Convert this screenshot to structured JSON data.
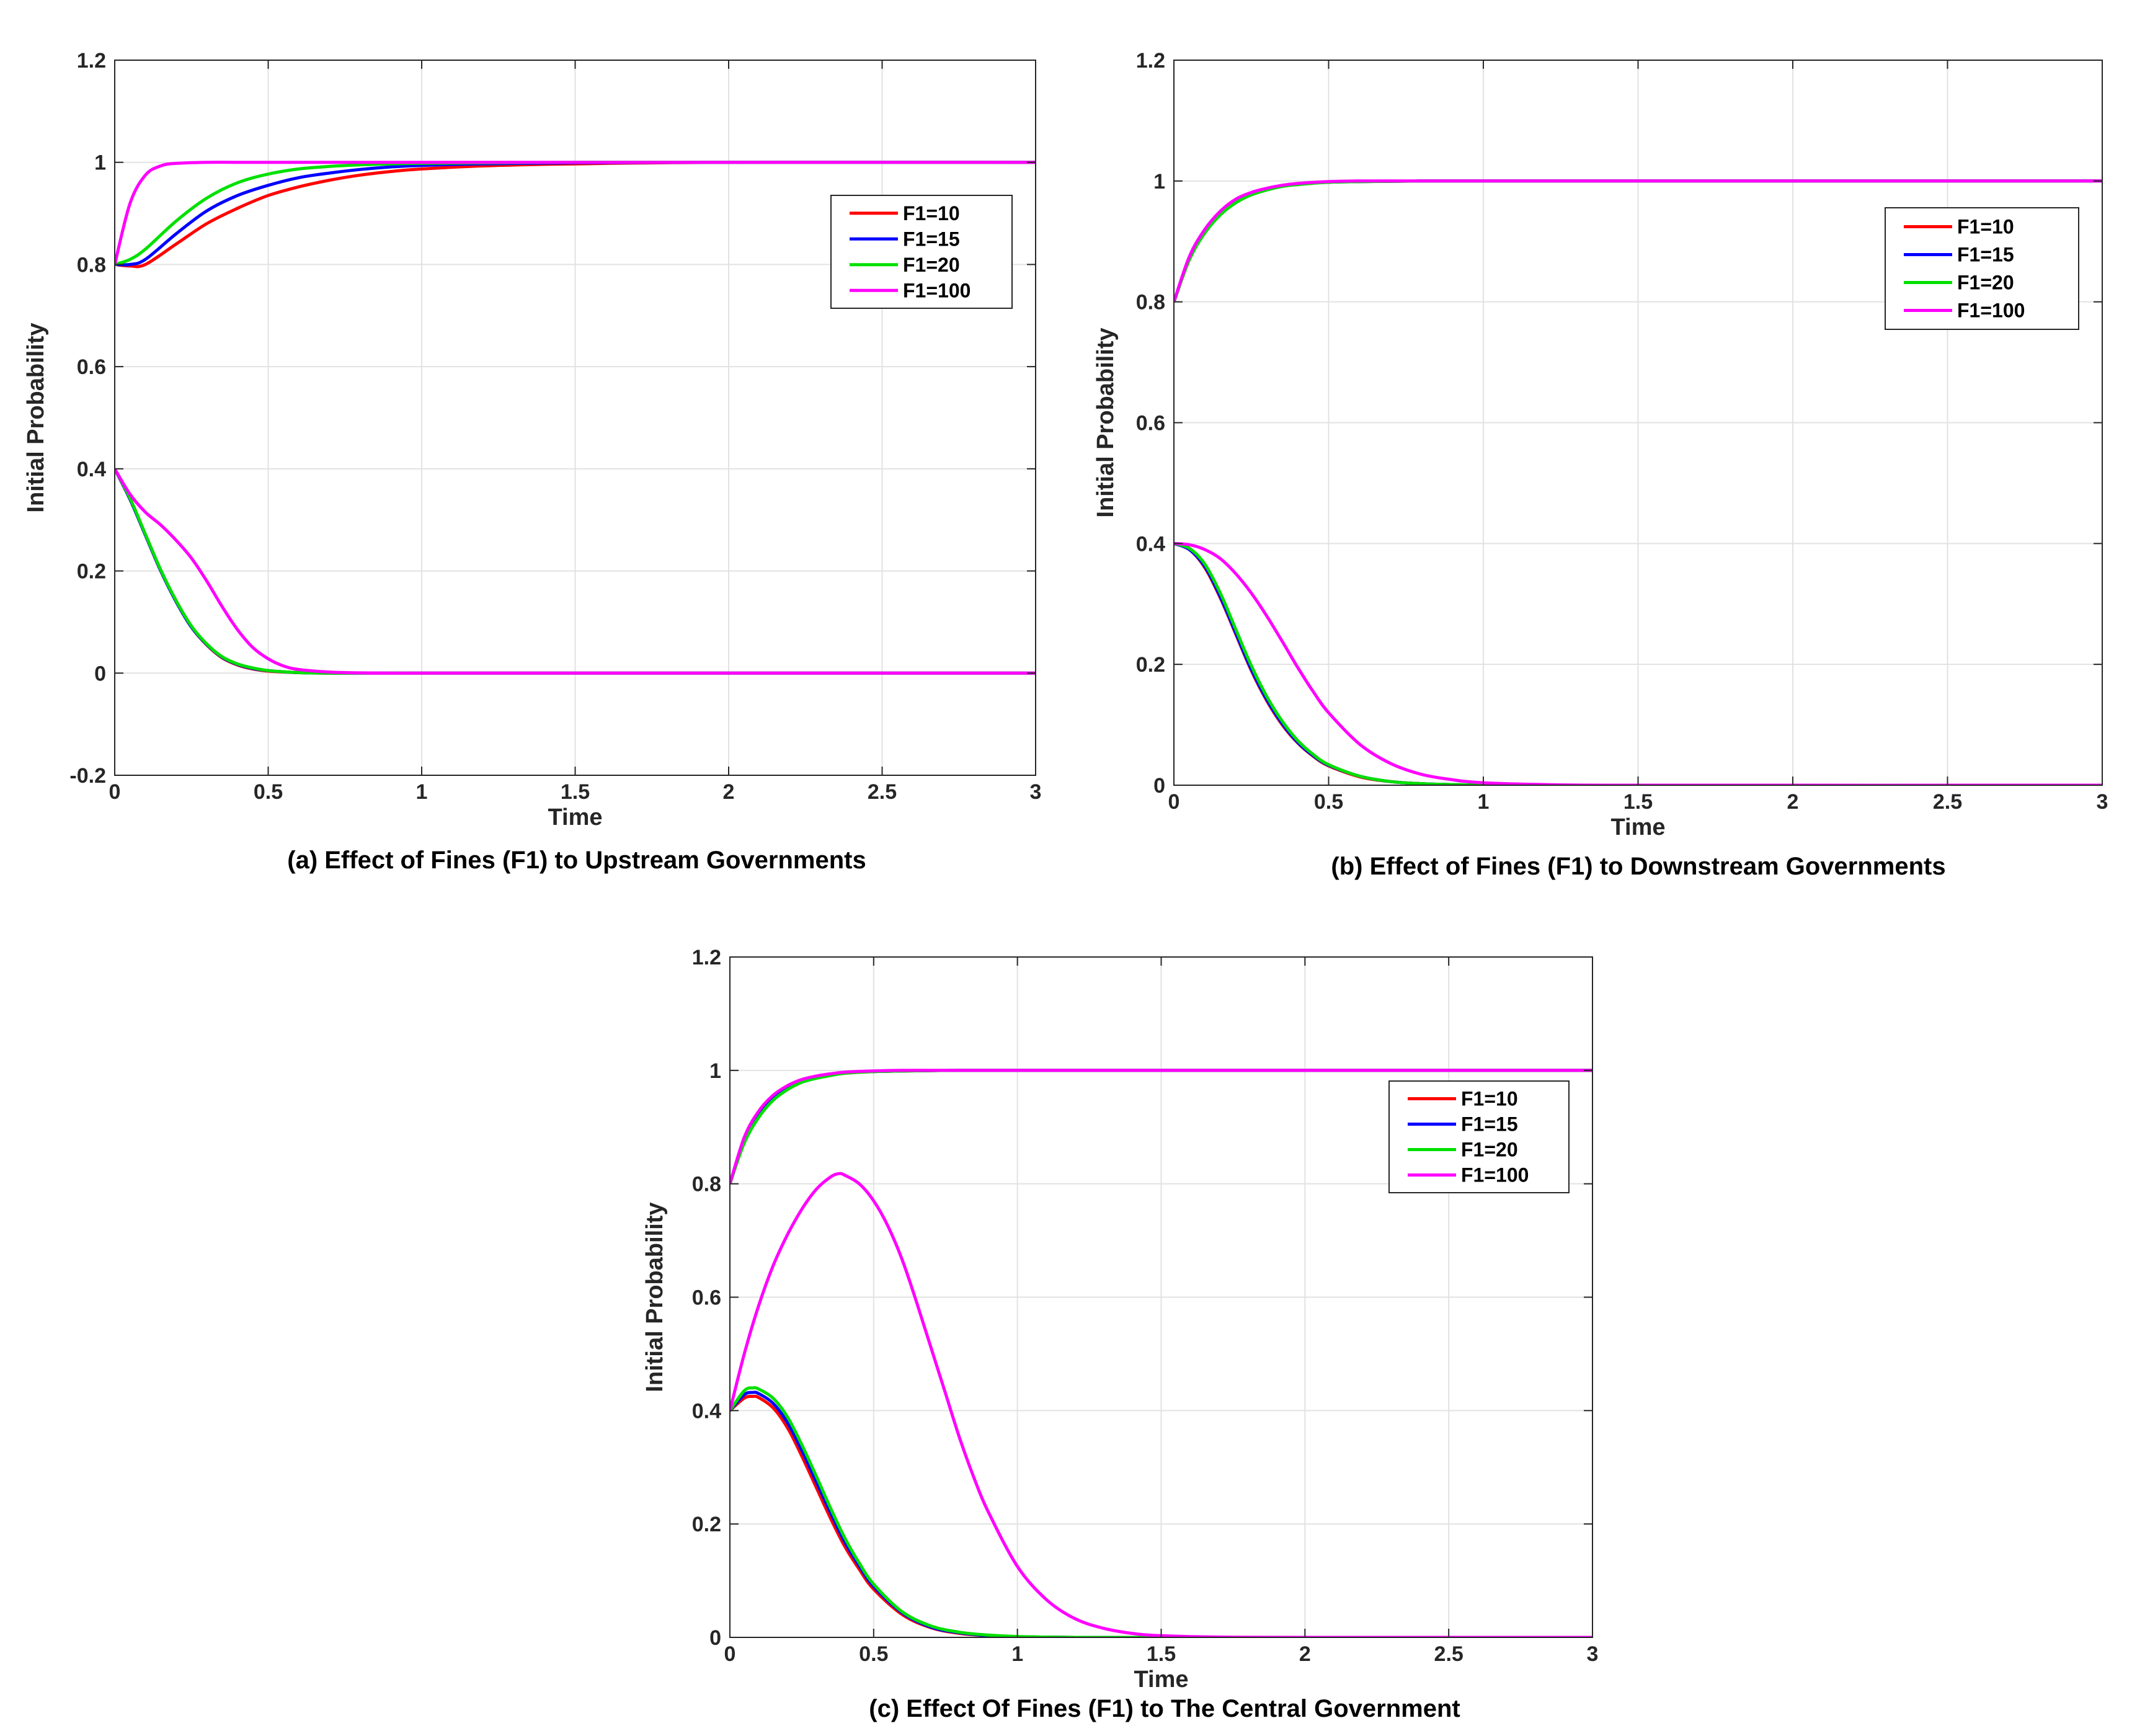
{
  "colors": {
    "F1=10": "#ff0000",
    "F1=15": "#0000ff",
    "F1=20": "#00e000",
    "F1=100": "#ff00ff"
  },
  "chart_data": [
    {
      "type": "line",
      "id": "a",
      "caption": "(a) Effect of Fines (F1) to Upstream Governments",
      "xlabel": "Time",
      "ylabel": "Initial Probability",
      "xlim": [
        0,
        3
      ],
      "ylim": [
        -0.2,
        1.2
      ],
      "xticks": [
        "0",
        "0.5",
        "1",
        "1.5",
        "2",
        "2.5",
        "3"
      ],
      "yticks": [
        "-0.2",
        "0",
        "0.2",
        "0.4",
        "0.6",
        "0.8",
        "1",
        "1.2"
      ],
      "grid": true,
      "legend": [
        "F1=10",
        "F1=15",
        "F1=20",
        "F1=100"
      ],
      "legend_position": "top-right",
      "series": [
        {
          "name": "F1=10",
          "x": [
            0,
            0.05,
            0.1,
            0.2,
            0.3,
            0.4,
            0.5,
            0.6,
            0.7,
            0.8,
            0.9,
            1.0,
            1.2,
            1.5,
            2,
            3
          ],
          "y": [
            0.8,
            0.797,
            0.8,
            0.84,
            0.88,
            0.91,
            0.935,
            0.952,
            0.965,
            0.975,
            0.982,
            0.987,
            0.993,
            0.997,
            1.0,
            1.0
          ]
        },
        {
          "name": "F1=15",
          "x": [
            0,
            0.05,
            0.1,
            0.2,
            0.3,
            0.4,
            0.5,
            0.6,
            0.7,
            0.8,
            0.9,
            1.0,
            1.2,
            1.5,
            2,
            3
          ],
          "y": [
            0.8,
            0.8,
            0.81,
            0.86,
            0.905,
            0.935,
            0.955,
            0.97,
            0.979,
            0.986,
            0.991,
            0.994,
            0.997,
            0.999,
            1.0,
            1.0
          ]
        },
        {
          "name": "F1=20",
          "x": [
            0,
            0.05,
            0.1,
            0.2,
            0.3,
            0.4,
            0.5,
            0.6,
            0.7,
            0.8,
            0.9,
            1.0,
            1.2,
            1.5,
            2,
            3
          ],
          "y": [
            0.8,
            0.81,
            0.83,
            0.885,
            0.93,
            0.96,
            0.977,
            0.987,
            0.992,
            0.995,
            0.997,
            0.998,
            0.999,
            1.0,
            1.0,
            1.0
          ]
        },
        {
          "name": "F1=100",
          "x": [
            0,
            0.05,
            0.1,
            0.15,
            0.2,
            0.3,
            0.4,
            0.6,
            1,
            3
          ],
          "y": [
            0.8,
            0.92,
            0.975,
            0.993,
            0.998,
            1.0,
            1.0,
            1.0,
            1.0,
            1.0
          ]
        },
        {
          "name": "F1=10",
          "x": [
            0,
            0.05,
            0.1,
            0.15,
            0.2,
            0.25,
            0.3,
            0.35,
            0.4,
            0.45,
            0.5,
            0.6,
            0.7,
            0.8,
            1,
            3
          ],
          "y": [
            0.4,
            0.34,
            0.27,
            0.2,
            0.14,
            0.09,
            0.055,
            0.03,
            0.016,
            0.008,
            0.004,
            0.001,
            0.0,
            0.0,
            0.0,
            0.0
          ]
        },
        {
          "name": "F1=15",
          "x": [
            0,
            0.05,
            0.1,
            0.15,
            0.2,
            0.25,
            0.3,
            0.35,
            0.4,
            0.45,
            0.5,
            0.6,
            0.7,
            0.8,
            1,
            3
          ],
          "y": [
            0.4,
            0.34,
            0.27,
            0.2,
            0.14,
            0.09,
            0.056,
            0.031,
            0.017,
            0.009,
            0.005,
            0.001,
            0.0,
            0.0,
            0.0,
            0.0
          ]
        },
        {
          "name": "F1=20",
          "x": [
            0,
            0.05,
            0.1,
            0.15,
            0.2,
            0.25,
            0.3,
            0.35,
            0.4,
            0.45,
            0.5,
            0.6,
            0.7,
            0.8,
            1,
            3
          ],
          "y": [
            0.4,
            0.342,
            0.272,
            0.202,
            0.142,
            0.092,
            0.057,
            0.032,
            0.018,
            0.01,
            0.005,
            0.001,
            0.0,
            0.0,
            0.0,
            0.0
          ]
        },
        {
          "name": "F1=100",
          "x": [
            0,
            0.05,
            0.1,
            0.15,
            0.2,
            0.25,
            0.3,
            0.35,
            0.4,
            0.45,
            0.5,
            0.55,
            0.6,
            0.7,
            0.8,
            0.9,
            1,
            3
          ],
          "y": [
            0.4,
            0.35,
            0.315,
            0.29,
            0.26,
            0.225,
            0.18,
            0.13,
            0.085,
            0.05,
            0.028,
            0.014,
            0.007,
            0.002,
            0.0005,
            0.0,
            0.0,
            0.0
          ]
        }
      ]
    },
    {
      "type": "line",
      "id": "b",
      "caption": "(b) Effect of Fines (F1) to Downstream Governments",
      "xlabel": "Time",
      "ylabel": "Initial Probability",
      "xlim": [
        0,
        3
      ],
      "ylim": [
        0,
        1.2
      ],
      "xticks": [
        "0",
        "0.5",
        "1",
        "1.5",
        "2",
        "2.5",
        "3"
      ],
      "yticks": [
        "0",
        "0.2",
        "0.4",
        "0.6",
        "0.8",
        "1",
        "1.2"
      ],
      "grid": true,
      "legend": [
        "F1=10",
        "F1=15",
        "F1=20",
        "F1=100"
      ],
      "legend_position": "top-right",
      "series": [
        {
          "name": "F1=10",
          "x": [
            0,
            0.05,
            0.1,
            0.15,
            0.2,
            0.25,
            0.3,
            0.35,
            0.4,
            0.5,
            0.6,
            0.8,
            1,
            3
          ],
          "y": [
            0.8,
            0.87,
            0.915,
            0.945,
            0.965,
            0.978,
            0.986,
            0.992,
            0.995,
            0.998,
            0.999,
            1.0,
            1.0,
            1.0
          ]
        },
        {
          "name": "F1=15",
          "x": [
            0,
            0.05,
            0.1,
            0.15,
            0.2,
            0.25,
            0.3,
            0.35,
            0.4,
            0.5,
            0.6,
            0.8,
            1,
            3
          ],
          "y": [
            0.8,
            0.872,
            0.917,
            0.947,
            0.967,
            0.979,
            0.987,
            0.992,
            0.995,
            0.998,
            0.999,
            1.0,
            1.0,
            1.0
          ]
        },
        {
          "name": "F1=20",
          "x": [
            0,
            0.05,
            0.1,
            0.15,
            0.2,
            0.25,
            0.3,
            0.35,
            0.4,
            0.5,
            0.6,
            0.8,
            1,
            3
          ],
          "y": [
            0.8,
            0.87,
            0.914,
            0.944,
            0.964,
            0.977,
            0.985,
            0.991,
            0.994,
            0.998,
            0.999,
            1.0,
            1.0,
            1.0
          ]
        },
        {
          "name": "F1=100",
          "x": [
            0,
            0.05,
            0.1,
            0.15,
            0.2,
            0.25,
            0.3,
            0.35,
            0.4,
            0.5,
            0.6,
            0.8,
            1,
            3
          ],
          "y": [
            0.8,
            0.875,
            0.92,
            0.95,
            0.97,
            0.981,
            0.988,
            0.993,
            0.996,
            0.999,
            1.0,
            1.0,
            1.0,
            1.0
          ]
        },
        {
          "name": "F1=10",
          "x": [
            0,
            0.05,
            0.1,
            0.15,
            0.2,
            0.25,
            0.3,
            0.35,
            0.4,
            0.45,
            0.5,
            0.6,
            0.7,
            0.8,
            0.9,
            1,
            1.2,
            3
          ],
          "y": [
            0.4,
            0.39,
            0.36,
            0.31,
            0.25,
            0.19,
            0.14,
            0.1,
            0.07,
            0.048,
            0.032,
            0.014,
            0.006,
            0.0025,
            0.001,
            0.0,
            0.0,
            0.0
          ]
        },
        {
          "name": "F1=15",
          "x": [
            0,
            0.05,
            0.1,
            0.15,
            0.2,
            0.25,
            0.3,
            0.35,
            0.4,
            0.45,
            0.5,
            0.6,
            0.7,
            0.8,
            0.9,
            1,
            1.2,
            3
          ],
          "y": [
            0.4,
            0.39,
            0.362,
            0.312,
            0.252,
            0.192,
            0.142,
            0.102,
            0.071,
            0.049,
            0.033,
            0.015,
            0.006,
            0.0025,
            0.001,
            0.0,
            0.0,
            0.0
          ]
        },
        {
          "name": "F1=20",
          "x": [
            0,
            0.05,
            0.1,
            0.15,
            0.2,
            0.25,
            0.3,
            0.35,
            0.4,
            0.45,
            0.5,
            0.6,
            0.7,
            0.8,
            0.9,
            1,
            1.2,
            3
          ],
          "y": [
            0.4,
            0.392,
            0.366,
            0.318,
            0.258,
            0.198,
            0.147,
            0.106,
            0.074,
            0.051,
            0.034,
            0.015,
            0.006,
            0.0025,
            0.001,
            0.0,
            0.0,
            0.0
          ]
        },
        {
          "name": "F1=100",
          "x": [
            0,
            0.05,
            0.1,
            0.15,
            0.2,
            0.25,
            0.3,
            0.35,
            0.4,
            0.45,
            0.5,
            0.6,
            0.7,
            0.8,
            0.9,
            1,
            1.2,
            1.5,
            3
          ],
          "y": [
            0.4,
            0.398,
            0.39,
            0.375,
            0.35,
            0.318,
            0.28,
            0.238,
            0.195,
            0.155,
            0.12,
            0.068,
            0.036,
            0.018,
            0.009,
            0.004,
            0.001,
            0.0,
            0.0
          ]
        }
      ]
    },
    {
      "type": "line",
      "id": "c",
      "caption": "(c) Effect Of Fines (F1) to The Central Government",
      "xlabel": "Time",
      "ylabel": "Initial Probability",
      "xlim": [
        0,
        3
      ],
      "ylim": [
        0,
        1.2
      ],
      "xticks": [
        "0",
        "0.5",
        "1",
        "1.5",
        "2",
        "2.5",
        "3"
      ],
      "yticks": [
        "0",
        "0.2",
        "0.4",
        "0.6",
        "0.8",
        "1",
        "1.2"
      ],
      "grid": true,
      "legend": [
        "F1=10",
        "F1=15",
        "F1=20",
        "F1=100"
      ],
      "legend_position": "top-right",
      "series": [
        {
          "name": "F1=10",
          "x": [
            0,
            0.05,
            0.1,
            0.15,
            0.2,
            0.25,
            0.3,
            0.35,
            0.4,
            0.5,
            0.6,
            0.8,
            1,
            3
          ],
          "y": [
            0.8,
            0.875,
            0.92,
            0.95,
            0.968,
            0.98,
            0.987,
            0.992,
            0.995,
            0.998,
            0.999,
            1.0,
            1.0,
            1.0
          ]
        },
        {
          "name": "F1=15",
          "x": [
            0,
            0.05,
            0.1,
            0.15,
            0.2,
            0.25,
            0.3,
            0.35,
            0.4,
            0.5,
            0.6,
            0.8,
            1,
            3
          ],
          "y": [
            0.8,
            0.877,
            0.922,
            0.951,
            0.969,
            0.981,
            0.988,
            0.993,
            0.996,
            0.998,
            0.999,
            1.0,
            1.0,
            1.0
          ]
        },
        {
          "name": "F1=20",
          "x": [
            0,
            0.05,
            0.1,
            0.15,
            0.2,
            0.25,
            0.3,
            0.35,
            0.4,
            0.5,
            0.6,
            0.8,
            1,
            3
          ],
          "y": [
            0.8,
            0.872,
            0.917,
            0.947,
            0.966,
            0.979,
            0.986,
            0.991,
            0.995,
            0.998,
            0.999,
            1.0,
            1.0,
            1.0
          ]
        },
        {
          "name": "F1=100",
          "x": [
            0,
            0.05,
            0.1,
            0.15,
            0.2,
            0.25,
            0.3,
            0.35,
            0.4,
            0.5,
            0.6,
            0.8,
            1,
            3
          ],
          "y": [
            0.8,
            0.882,
            0.928,
            0.956,
            0.973,
            0.984,
            0.99,
            0.994,
            0.997,
            0.999,
            1.0,
            1.0,
            1.0,
            1.0
          ]
        },
        {
          "name": "F1=10",
          "x": [
            0,
            0.05,
            0.08,
            0.1,
            0.15,
            0.2,
            0.25,
            0.3,
            0.35,
            0.4,
            0.45,
            0.5,
            0.6,
            0.7,
            0.8,
            0.9,
            1,
            1.2,
            1.5,
            3
          ],
          "y": [
            0.4,
            0.422,
            0.425,
            0.423,
            0.405,
            0.37,
            0.32,
            0.265,
            0.21,
            0.16,
            0.12,
            0.085,
            0.04,
            0.017,
            0.007,
            0.003,
            0.001,
            0.0,
            0.0,
            0.0
          ]
        },
        {
          "name": "F1=15",
          "x": [
            0,
            0.05,
            0.08,
            0.1,
            0.15,
            0.2,
            0.25,
            0.3,
            0.35,
            0.4,
            0.45,
            0.5,
            0.6,
            0.7,
            0.8,
            0.9,
            1,
            1.2,
            1.5,
            3
          ],
          "y": [
            0.4,
            0.428,
            0.432,
            0.43,
            0.413,
            0.379,
            0.33,
            0.275,
            0.22,
            0.168,
            0.126,
            0.09,
            0.043,
            0.018,
            0.008,
            0.003,
            0.001,
            0.0,
            0.0,
            0.0
          ]
        },
        {
          "name": "F1=20",
          "x": [
            0,
            0.05,
            0.08,
            0.1,
            0.15,
            0.2,
            0.25,
            0.3,
            0.35,
            0.4,
            0.45,
            0.5,
            0.6,
            0.7,
            0.8,
            0.9,
            1,
            1.2,
            1.5,
            3
          ],
          "y": [
            0.4,
            0.435,
            0.44,
            0.438,
            0.422,
            0.389,
            0.34,
            0.285,
            0.228,
            0.175,
            0.131,
            0.094,
            0.045,
            0.02,
            0.009,
            0.004,
            0.0015,
            0.0,
            0.0,
            0.0
          ]
        },
        {
          "name": "F1=100",
          "x": [
            0,
            0.05,
            0.1,
            0.15,
            0.2,
            0.25,
            0.3,
            0.35,
            0.38,
            0.4,
            0.45,
            0.5,
            0.55,
            0.6,
            0.65,
            0.7,
            0.75,
            0.8,
            0.85,
            0.9,
            1,
            1.1,
            1.2,
            1.3,
            1.4,
            1.5,
            1.7,
            2,
            3
          ],
          "y": [
            0.4,
            0.5,
            0.585,
            0.655,
            0.71,
            0.755,
            0.79,
            0.812,
            0.818,
            0.815,
            0.8,
            0.77,
            0.725,
            0.665,
            0.59,
            0.51,
            0.43,
            0.35,
            0.28,
            0.22,
            0.125,
            0.067,
            0.033,
            0.016,
            0.007,
            0.003,
            0.0005,
            0.0,
            0.0
          ]
        }
      ]
    }
  ]
}
